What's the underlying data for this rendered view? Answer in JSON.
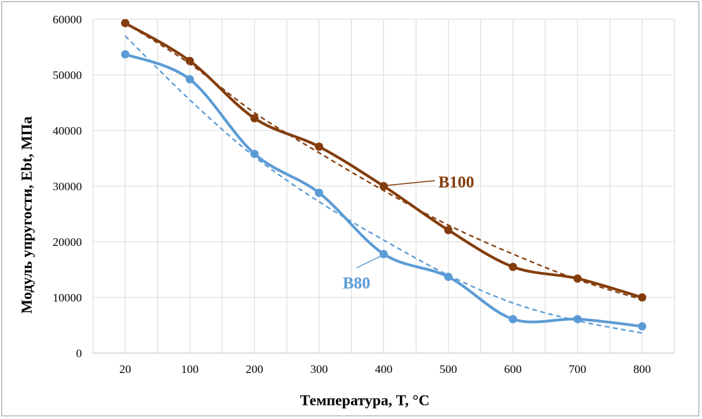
{
  "chart_data": {
    "type": "line",
    "title": "",
    "xlabel": "Температура, T, °C",
    "ylabel": "Модуль упругости, Ebt, МПа",
    "categories": [
      "20",
      "100",
      "200",
      "300",
      "400",
      "500",
      "600",
      "700",
      "800"
    ],
    "ylim": [
      0,
      60000
    ],
    "yticks": [
      "0",
      "10000",
      "20000",
      "30000",
      "40000",
      "50000",
      "60000"
    ],
    "grid": true,
    "series": [
      {
        "name": "В100",
        "color": "#843c0c",
        "values": [
          59300,
          52500,
          42200,
          37100,
          30000,
          22100,
          15500,
          13400,
          10000
        ],
        "trend": [
          59300,
          52000,
          43200,
          36000,
          29200,
          23000,
          17800,
          13200,
          9600
        ]
      },
      {
        "name": "В80",
        "color": "#5b9bd5",
        "values": [
          53700,
          49200,
          35800,
          28800,
          17800,
          13700,
          6100,
          6100,
          4800
        ],
        "trend": [
          57000,
          45500,
          35300,
          27200,
          20300,
          14000,
          9000,
          5800,
          3600
        ]
      }
    ]
  }
}
